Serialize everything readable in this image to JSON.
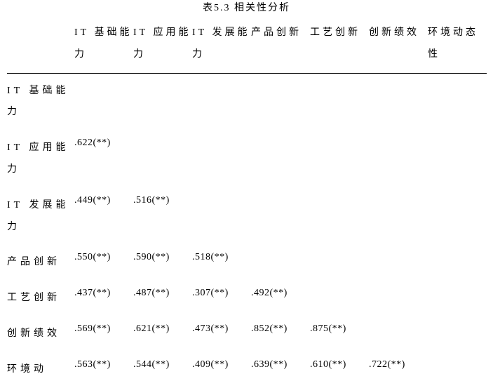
{
  "title": "表5.3 相关性分析",
  "headers": {
    "c1": "IT 基础能力",
    "c2": "IT 应用能力",
    "c3": "IT 发展能力",
    "c4": "产品创新",
    "c5": "工艺创新",
    "c6": "创新绩效",
    "c7": "环境动态性"
  },
  "rows": {
    "r1": {
      "label": "IT 基础能力"
    },
    "r2": {
      "label": "IT 应用能力",
      "v1": ".622(**)"
    },
    "r3": {
      "label": "IT 发展能力",
      "v1": ".449(**)",
      "v2": ".516(**)"
    },
    "r4": {
      "label": "产品创新",
      "v1": ".550(**)",
      "v2": ".590(**)",
      "v3": ".518(**)"
    },
    "r5": {
      "label": "工艺创新",
      "v1": ".437(**)",
      "v2": ".487(**)",
      "v3": ".307(**)",
      "v4": ".492(**)"
    },
    "r6": {
      "label": "创新绩效",
      "v1": ".569(**)",
      "v2": ".621(**)",
      "v3": ".473(**)",
      "v4": ".852(**)",
      "v5": ".875(**)"
    },
    "r7": {
      "label": "环境动",
      "v1": ".563(**)",
      "v2": ".544(**)",
      "v3": ".409(**)",
      "v4": ".639(**)",
      "v5": ".610(**)",
      "v6": ".722(**)"
    }
  }
}
